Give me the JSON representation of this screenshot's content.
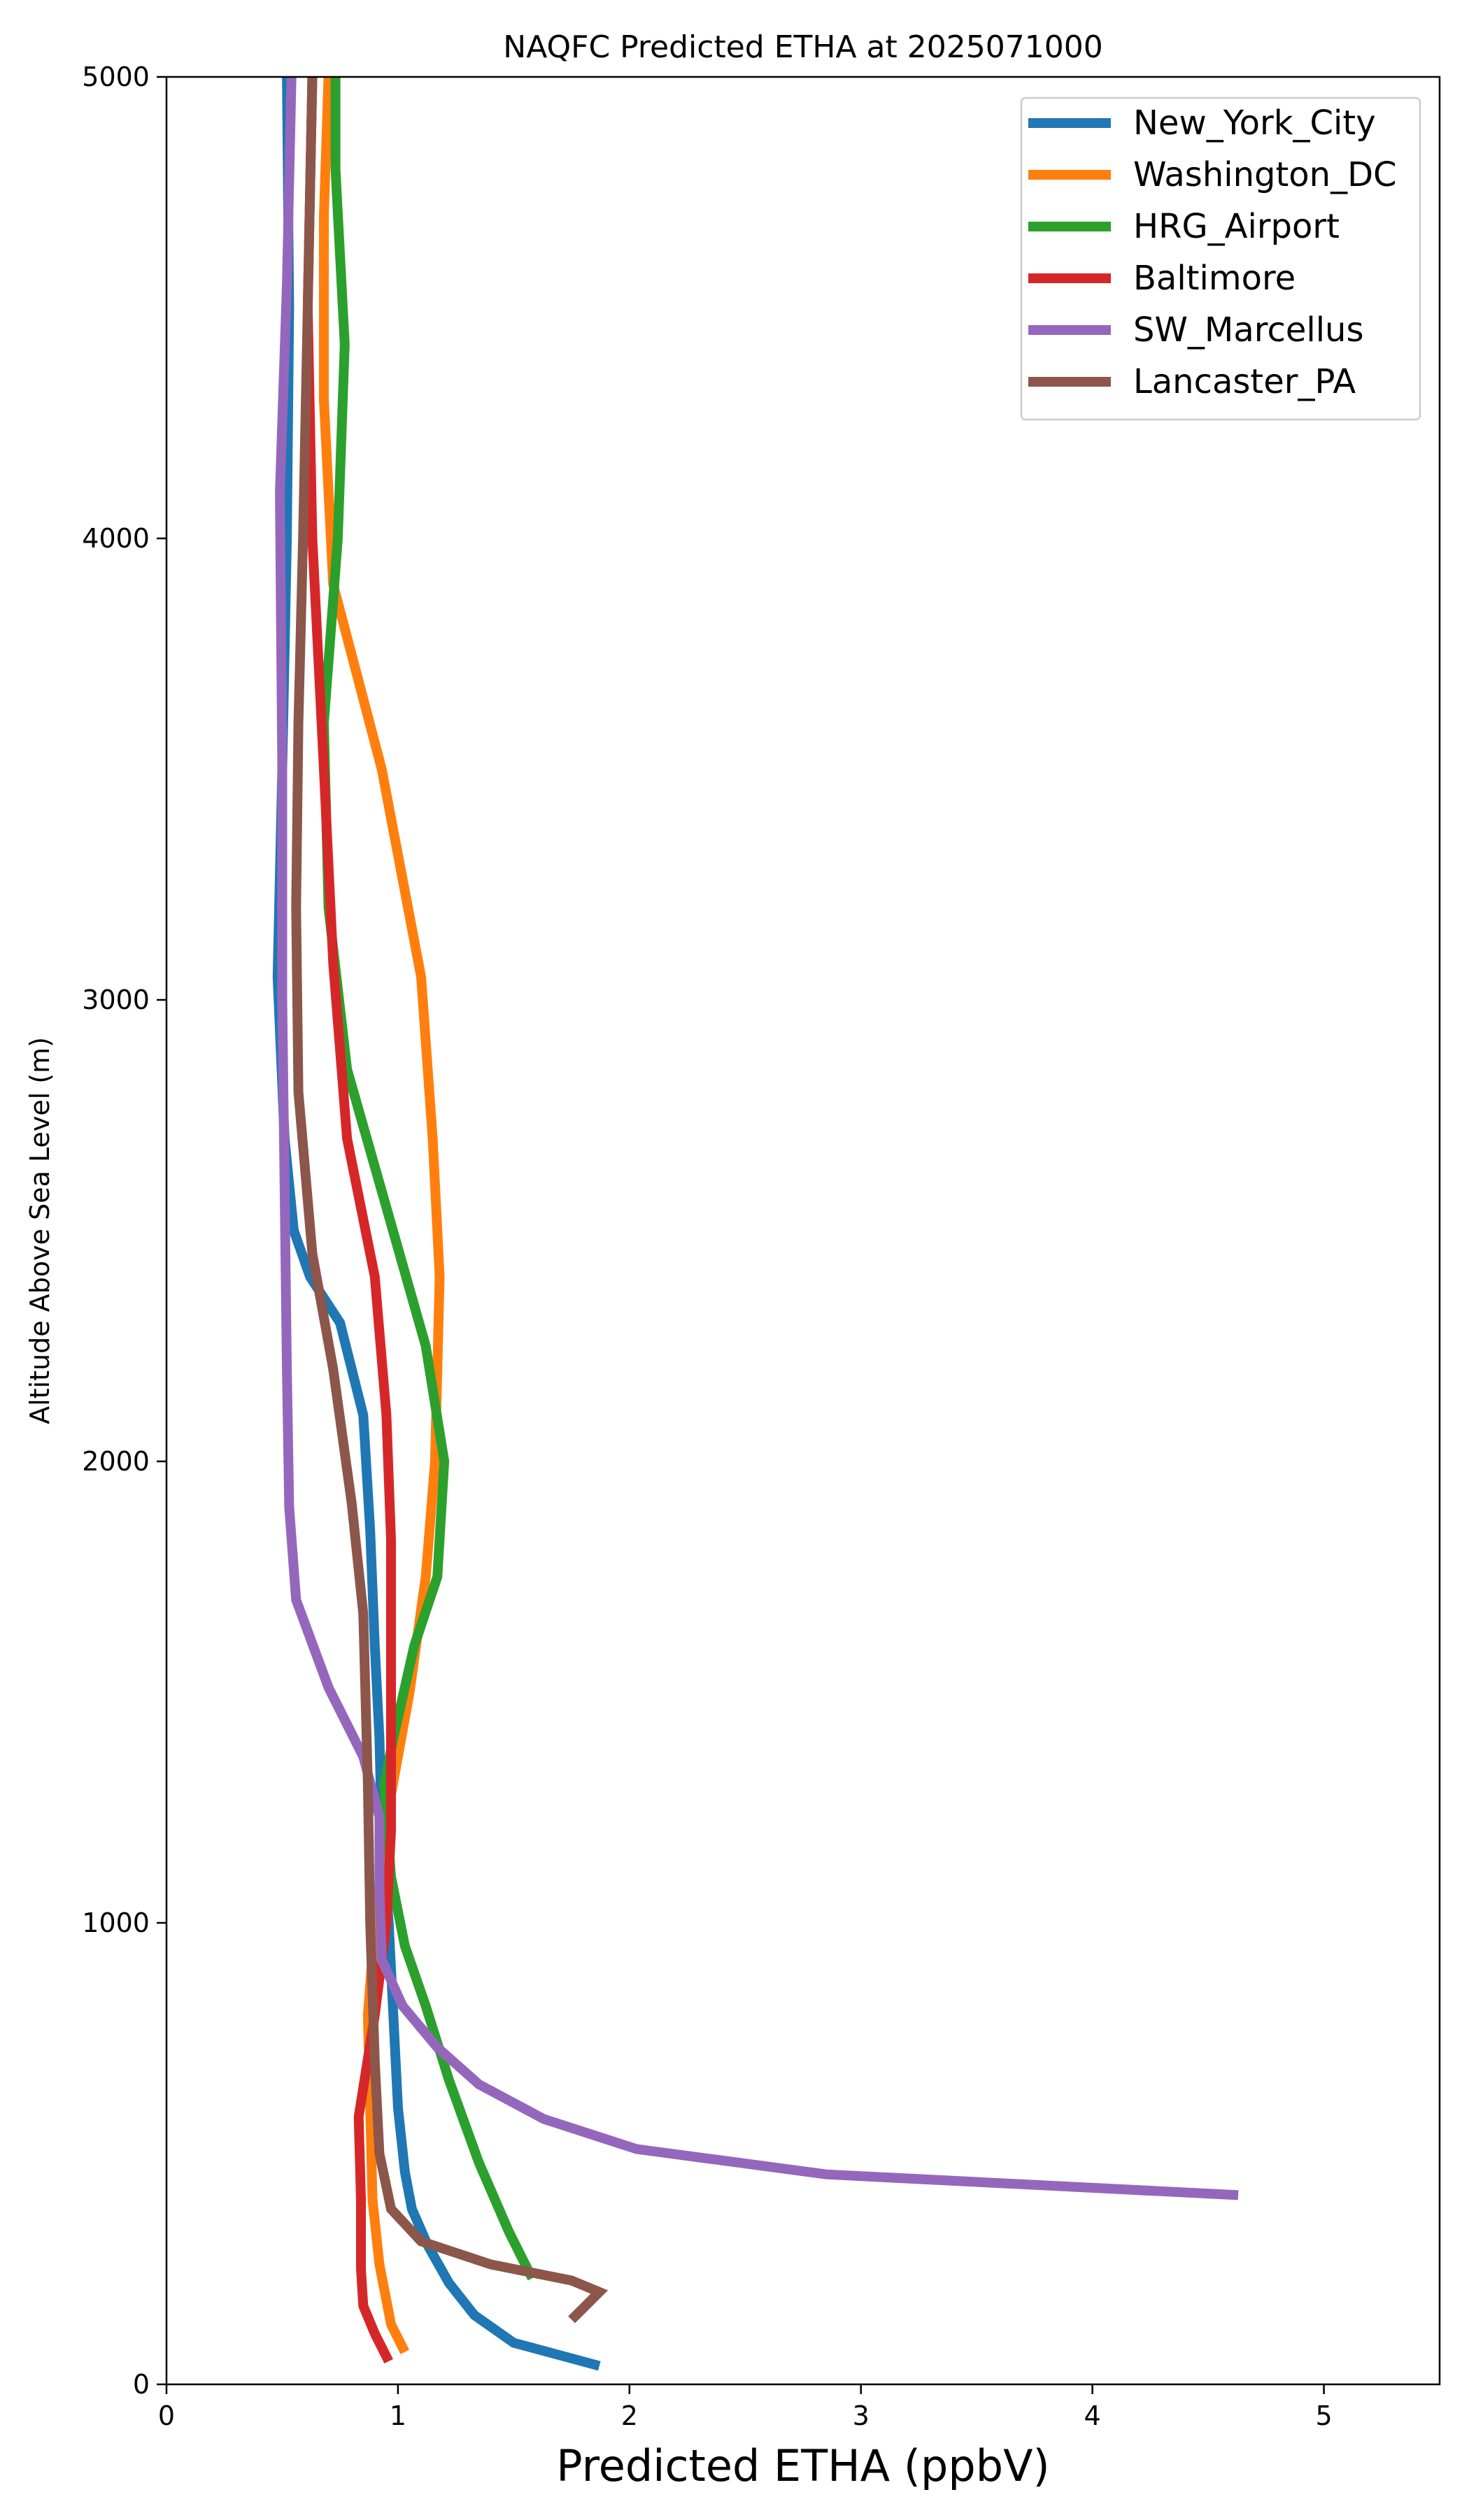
{
  "chart_data": {
    "type": "line",
    "title": "NAQFC Predicted ETHA at 2025071000",
    "xlabel": "Predicted ETHA (ppbV)",
    "ylabel": "Altitude Above Sea Level (m)",
    "xlim": [
      0,
      5.5
    ],
    "ylim": [
      0,
      5000
    ],
    "xticks": [
      0,
      1,
      2,
      3,
      4,
      5
    ],
    "yticks": [
      0,
      1000,
      2000,
      3000,
      4000,
      5000
    ],
    "grid": false,
    "legend_position": "top-right",
    "series": [
      {
        "name": "New_York_City",
        "color": "#1f77b4",
        "points": [
          [
            1.87,
            40
          ],
          [
            1.5,
            90
          ],
          [
            1.33,
            150
          ],
          [
            1.22,
            220
          ],
          [
            1.13,
            300
          ],
          [
            1.06,
            380
          ],
          [
            1.03,
            460
          ],
          [
            1.0,
            600
          ],
          [
            0.98,
            800
          ],
          [
            0.96,
            1000
          ],
          [
            0.93,
            1200
          ],
          [
            0.92,
            1400
          ],
          [
            0.9,
            1600
          ],
          [
            0.88,
            1850
          ],
          [
            0.85,
            2100
          ],
          [
            0.75,
            2300
          ],
          [
            0.62,
            2400
          ],
          [
            0.55,
            2500
          ],
          [
            0.51,
            2700
          ],
          [
            0.48,
            3050
          ],
          [
            0.5,
            3500
          ],
          [
            0.52,
            4000
          ],
          [
            0.53,
            4500
          ],
          [
            0.52,
            5000
          ]
        ]
      },
      {
        "name": "Washington_DC",
        "color": "#ff7f0e",
        "points": [
          [
            1.03,
            70
          ],
          [
            0.97,
            130
          ],
          [
            0.92,
            260
          ],
          [
            0.89,
            400
          ],
          [
            0.88,
            600
          ],
          [
            0.87,
            800
          ],
          [
            0.9,
            1000
          ],
          [
            0.96,
            1250
          ],
          [
            1.05,
            1500
          ],
          [
            1.12,
            1750
          ],
          [
            1.16,
            2000
          ],
          [
            1.18,
            2400
          ],
          [
            1.15,
            2700
          ],
          [
            1.1,
            3050
          ],
          [
            0.93,
            3500
          ],
          [
            0.72,
            3900
          ],
          [
            0.68,
            4300
          ],
          [
            0.68,
            4700
          ],
          [
            0.7,
            5000
          ]
        ]
      },
      {
        "name": "HRG_Airport",
        "color": "#2ca02c",
        "points": [
          [
            1.58,
            230
          ],
          [
            1.48,
            330
          ],
          [
            1.35,
            480
          ],
          [
            1.22,
            660
          ],
          [
            1.12,
            820
          ],
          [
            1.03,
            950
          ],
          [
            0.97,
            1100
          ],
          [
            0.94,
            1300
          ],
          [
            0.98,
            1400
          ],
          [
            1.07,
            1600
          ],
          [
            1.17,
            1750
          ],
          [
            1.2,
            2000
          ],
          [
            1.12,
            2250
          ],
          [
            0.95,
            2550
          ],
          [
            0.78,
            2850
          ],
          [
            0.7,
            3200
          ],
          [
            0.68,
            3600
          ],
          [
            0.74,
            4000
          ],
          [
            0.77,
            4420
          ],
          [
            0.73,
            4800
          ],
          [
            0.73,
            5000
          ]
        ]
      },
      {
        "name": "Baltimore",
        "color": "#d62728",
        "points": [
          [
            0.96,
            50
          ],
          [
            0.9,
            110
          ],
          [
            0.85,
            170
          ],
          [
            0.84,
            250
          ],
          [
            0.84,
            400
          ],
          [
            0.83,
            580
          ],
          [
            0.9,
            800
          ],
          [
            0.95,
            1000
          ],
          [
            0.97,
            1200
          ],
          [
            0.97,
            1500
          ],
          [
            0.97,
            1830
          ],
          [
            0.95,
            2100
          ],
          [
            0.9,
            2400
          ],
          [
            0.78,
            2700
          ],
          [
            0.72,
            3080
          ],
          [
            0.68,
            3500
          ],
          [
            0.63,
            4000
          ],
          [
            0.61,
            4500
          ],
          [
            0.63,
            5000
          ]
        ]
      },
      {
        "name": "SW_Marcellus",
        "color": "#9467bd",
        "points": [
          [
            4.63,
            410
          ],
          [
            2.85,
            455
          ],
          [
            2.03,
            510
          ],
          [
            1.63,
            575
          ],
          [
            1.35,
            650
          ],
          [
            1.17,
            730
          ],
          [
            1.02,
            820
          ],
          [
            0.93,
            920
          ],
          [
            0.92,
            1080
          ],
          [
            0.92,
            1230
          ],
          [
            0.85,
            1360
          ],
          [
            0.7,
            1510
          ],
          [
            0.56,
            1700
          ],
          [
            0.53,
            1900
          ],
          [
            0.52,
            2200
          ],
          [
            0.51,
            2600
          ],
          [
            0.5,
            3000
          ],
          [
            0.5,
            3500
          ],
          [
            0.49,
            4100
          ],
          [
            0.52,
            4550
          ],
          [
            0.54,
            5000
          ]
        ]
      },
      {
        "name": "Lancaster_PA",
        "color": "#8c564b",
        "points": [
          [
            1.75,
            140
          ],
          [
            1.87,
            200
          ],
          [
            1.75,
            225
          ],
          [
            1.4,
            260
          ],
          [
            1.1,
            310
          ],
          [
            0.97,
            380
          ],
          [
            0.92,
            500
          ],
          [
            0.9,
            700
          ],
          [
            0.88,
            1000
          ],
          [
            0.87,
            1300
          ],
          [
            0.85,
            1670
          ],
          [
            0.8,
            1910
          ],
          [
            0.72,
            2200
          ],
          [
            0.63,
            2450
          ],
          [
            0.57,
            2800
          ],
          [
            0.56,
            3200
          ],
          [
            0.57,
            3600
          ],
          [
            0.59,
            4000
          ],
          [
            0.61,
            4500
          ],
          [
            0.63,
            5000
          ]
        ]
      }
    ]
  }
}
